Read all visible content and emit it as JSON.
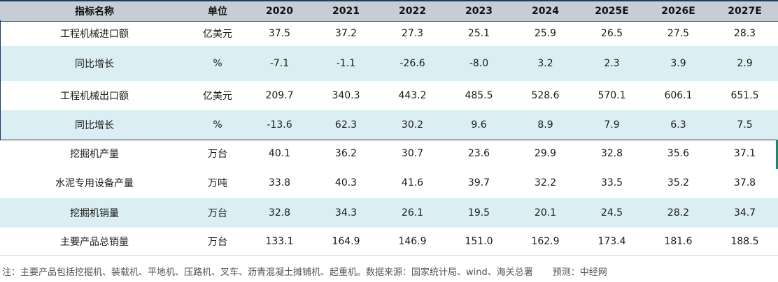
{
  "table": {
    "headers": [
      "指标名称",
      "单位",
      "2020",
      "2021",
      "2022",
      "2023",
      "2024",
      "2025E",
      "2026E",
      "2027E"
    ],
    "rows": [
      {
        "name": "工程机械进口额",
        "unit": "亿美元",
        "values": [
          "37.5",
          "37.2",
          "27.3",
          "25.1",
          "25.9",
          "26.5",
          "27.5",
          "28.3"
        ]
      },
      {
        "name": "同比增长",
        "unit": "%",
        "values": [
          "-7.1",
          "-1.1",
          "-26.6",
          "-8.0",
          "3.2",
          "2.3",
          "3.9",
          "2.9"
        ]
      },
      {
        "name": "工程机械出口额",
        "unit": "亿美元",
        "values": [
          "209.7",
          "340.3",
          "443.2",
          "485.5",
          "528.6",
          "570.1",
          "606.1",
          "651.5"
        ]
      },
      {
        "name": "同比增长",
        "unit": "%",
        "values": [
          "-13.6",
          "62.3",
          "30.2",
          "9.6",
          "8.9",
          "7.9",
          "6.3",
          "7.5"
        ]
      },
      {
        "name": "挖掘机产量",
        "unit": "万台",
        "values": [
          "40.1",
          "36.2",
          "30.7",
          "23.6",
          "29.9",
          "32.8",
          "35.6",
          "37.1"
        ]
      },
      {
        "name": "水泥专用设备产量",
        "unit": "万吨",
        "values": [
          "33.8",
          "40.3",
          "41.6",
          "39.7",
          "32.2",
          "33.5",
          "35.2",
          "37.8"
        ]
      },
      {
        "name": "挖掘机销量",
        "unit": "万台",
        "values": [
          "32.8",
          "34.3",
          "26.1",
          "19.5",
          "20.1",
          "24.5",
          "28.2",
          "34.7"
        ]
      },
      {
        "name": "主要产品总销量",
        "unit": "万台",
        "values": [
          "133.1",
          "164.9",
          "146.9",
          "151.0",
          "162.9",
          "173.4",
          "181.6",
          "188.5"
        ]
      }
    ]
  },
  "footnote": {
    "note": "注：主要产品包括挖掘机、装载机、平地机、压路机、叉车、沥青混凝土摊铺机、起重机。数据来源：国家统计局、wind、海关总署",
    "forecast": "预测：中经网"
  },
  "colors": {
    "header_bg": "#c5cdd6",
    "row_shade": "#daeef4",
    "rule_line": "#243a55",
    "accent": "#1a8a6e"
  }
}
